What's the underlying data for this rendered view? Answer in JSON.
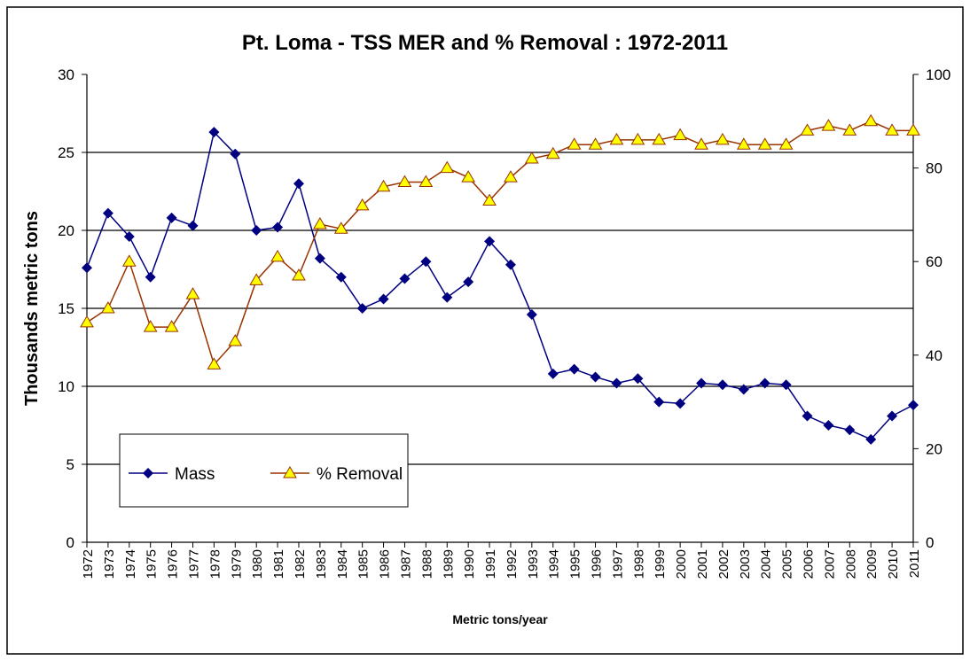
{
  "chart_data": {
    "type": "line",
    "title": "Pt. Loma - TSS MER and % Removal : 1972-2011",
    "y_label": "Thousands metric tons",
    "x_label": "Metric tons/year",
    "categories": [
      "1972",
      "1973",
      "1974",
      "1975",
      "1976",
      "1977",
      "1978",
      "1979",
      "1980",
      "1981",
      "1982",
      "1983",
      "1984",
      "1985",
      "1986",
      "1987",
      "1988",
      "1989",
      "1990",
      "1991",
      "1992",
      "1993",
      "1994",
      "1995",
      "1996",
      "1997",
      "1998",
      "1999",
      "2000",
      "2001",
      "2002",
      "2003",
      "2004",
      "2005",
      "2006",
      "2007",
      "2008",
      "2009",
      "2010",
      "2011"
    ],
    "series": [
      {
        "name": "Mass",
        "color": "#000080",
        "marker": "diamond",
        "values": [
          17.6,
          21.1,
          19.6,
          17.0,
          20.8,
          20.3,
          26.3,
          24.9,
          20.0,
          20.2,
          23.0,
          18.2,
          17.0,
          15.0,
          15.6,
          16.9,
          18.0,
          15.7,
          16.7,
          19.3,
          17.8,
          14.6,
          10.8,
          11.1,
          10.6,
          10.2,
          10.5,
          9.0,
          8.9,
          10.2,
          10.1,
          9.8,
          10.2,
          10.1,
          8.1,
          7.5,
          7.2,
          6.6,
          8.1,
          8.8
        ]
      },
      {
        "name": "% Removal",
        "color": "#993300",
        "marker": "triangle",
        "marker_fill": "#ffff00",
        "axis": "y2",
        "values": [
          47,
          50,
          60,
          46,
          46,
          53,
          38,
          43,
          56,
          61,
          57,
          68,
          67,
          72,
          76,
          77,
          77,
          80,
          78,
          73,
          78,
          82,
          83,
          85,
          85,
          86,
          86,
          86,
          87,
          85,
          86,
          85,
          85,
          85,
          88,
          89,
          88,
          90,
          88,
          88
        ]
      }
    ],
    "ylim": [
      0,
      30
    ],
    "yticks": [
      0,
      5,
      10,
      15,
      20,
      25,
      30
    ],
    "y2lim": [
      0,
      100
    ],
    "y2ticks": [
      0,
      20,
      40,
      60,
      80,
      100
    ],
    "grid": true,
    "legend": "lower left"
  }
}
